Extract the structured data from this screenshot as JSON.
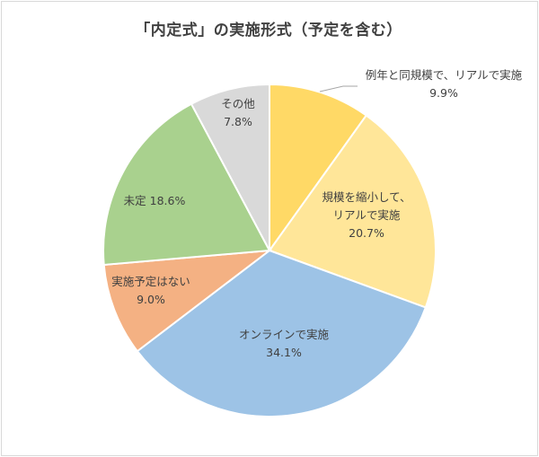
{
  "chart_data": {
    "type": "pie",
    "title": "「内定式」の実施形式（予定を含む）",
    "colors": {
      "border": "#ffffff",
      "leader": "#a6a6a6",
      "text": "#404040"
    },
    "slices": [
      {
        "label_lines": [
          "例年と同規模で、リアルで実施"
        ],
        "value": 9.9,
        "value_label": "9.9%",
        "color": "#ffd966"
      },
      {
        "label_lines": [
          "規模を縮小して、",
          "リアルで実施"
        ],
        "value": 20.7,
        "value_label": "20.7%",
        "color": "#ffe699"
      },
      {
        "label_lines": [
          "オンラインで実施"
        ],
        "value": 34.1,
        "value_label": "34.1%",
        "color": "#9dc3e6"
      },
      {
        "label_lines": [
          "実施予定はない"
        ],
        "value": 9.0,
        "value_label": "9.0%",
        "color": "#f4b183"
      },
      {
        "label_lines": [
          "未定 18.6%"
        ],
        "value": 18.6,
        "value_label": "",
        "color": "#a9d18e"
      },
      {
        "label_lines": [
          "その他"
        ],
        "value": 7.8,
        "value_label": "7.8%",
        "color": "#d9d9d9"
      }
    ]
  }
}
